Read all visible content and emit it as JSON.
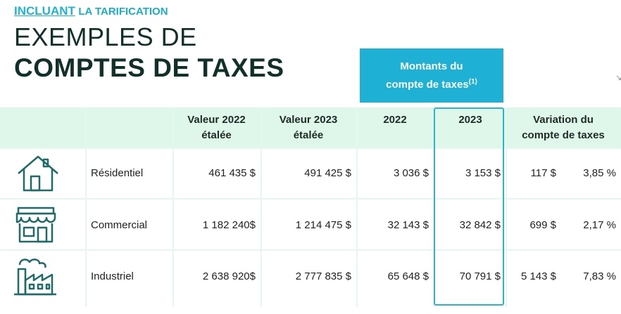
{
  "tagline": {
    "accent": "INCLUANT",
    "rest": "LA TARIFICATION"
  },
  "title": {
    "line1": "EXEMPLES DE",
    "line2": "COMPTES DE TAXES"
  },
  "montants_header": {
    "line1": "Montants du",
    "line2": "compte de taxes",
    "note": "(1)"
  },
  "columns": {
    "val2022": [
      "Valeur 2022",
      "étalée"
    ],
    "val2023": [
      "Valeur 2023",
      "étalée"
    ],
    "y2022": "2022",
    "y2023": "2023",
    "variation": [
      "Variation du",
      "compte de taxes"
    ]
  },
  "rows": [
    {
      "icon": "house-icon",
      "label": "Résidentiel",
      "val2022": "461 435 $",
      "val2023": "491 425 $",
      "tax2022": "3 036 $",
      "tax2023": "3 153 $",
      "var_amount": "117 $",
      "var_pct": "3,85 %"
    },
    {
      "icon": "storefront-icon",
      "label": "Commercial",
      "val2022": "1 182 240$",
      "val2023": "1 214 475 $",
      "tax2022": "32 143 $",
      "tax2023": "32 842 $",
      "var_amount": "699 $",
      "var_pct": "2,17 %"
    },
    {
      "icon": "factory-icon",
      "label": "Industriel",
      "val2022": "2 638 920$",
      "val2023": "2 777 835 $",
      "tax2022": "65 648 $",
      "tax2023": "70 791 $",
      "var_amount": "5 143 $",
      "var_pct": "7,83 %"
    }
  ],
  "colors": {
    "accent": "#1fb0d6",
    "header_band": "#dff7ea",
    "title": "#12302a",
    "icon": "#1e6b6a"
  }
}
